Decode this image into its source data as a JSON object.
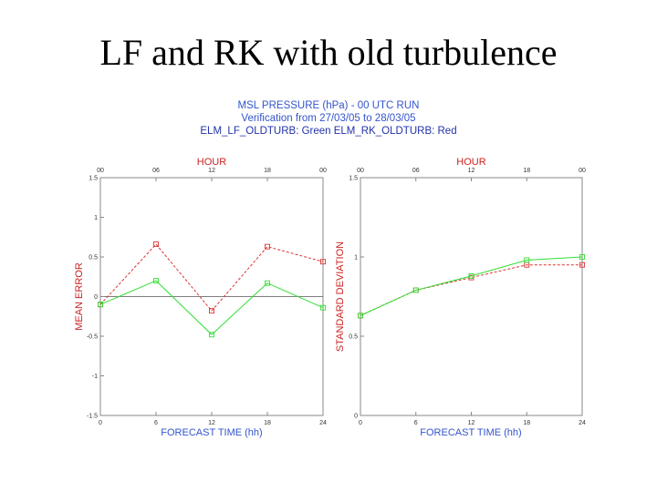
{
  "slide": {
    "title": "LF and RK with old turbulence"
  },
  "header": {
    "line1": "MSL PRESSURE (hPa) - 00 UTC RUN",
    "line2": "Verification from 27/03/05 to 28/03/05",
    "line3": "ELM_LF_OLDTURB: Green   ELM_RK_OLDTURB: Red"
  },
  "colors": {
    "lf": "#33dd33",
    "rk": "#dd3333",
    "frame": "#888888",
    "axis_title_red": "#cc2222",
    "axis_title_blue": "#3355cc"
  },
  "chart_data": [
    {
      "type": "line",
      "top_axis_label": "HOUR",
      "top_ticks": [
        "00",
        "06",
        "12",
        "18",
        "00"
      ],
      "xlabel": "FORECAST TIME (hh)",
      "ylabel": "MEAN ERROR",
      "x": [
        0,
        6,
        12,
        18,
        24
      ],
      "x_ticks": [
        "0",
        "6",
        "12",
        "18",
        "24"
      ],
      "xlim": [
        0,
        24
      ],
      "ylim": [
        -1.5,
        1.5
      ],
      "y_ticks": [
        "1.5",
        "1",
        "0.5",
        "0",
        "-0.5",
        "-1",
        "-1.5"
      ],
      "zero_line": true,
      "series": [
        {
          "name": "ELM_RK_OLDTURB",
          "color": "#dd3333",
          "marker": "square",
          "dash": true,
          "values": [
            -0.1,
            0.66,
            -0.18,
            0.63,
            0.44
          ]
        },
        {
          "name": "ELM_LF_OLDTURB",
          "color": "#33dd33",
          "marker": "square",
          "dash": false,
          "values": [
            -0.1,
            0.2,
            -0.48,
            0.17,
            -0.14
          ]
        }
      ]
    },
    {
      "type": "line",
      "top_axis_label": "HOUR",
      "top_ticks": [
        "00",
        "06",
        "12",
        "18",
        "00"
      ],
      "xlabel": "FORECAST TIME (hh)",
      "ylabel": "STANDARD DEVIATION",
      "x": [
        0,
        6,
        12,
        18,
        24
      ],
      "x_ticks": [
        "0",
        "6",
        "12",
        "18",
        "24"
      ],
      "xlim": [
        0,
        24
      ],
      "ylim": [
        0,
        1.5
      ],
      "y_ticks": [
        "1.5",
        "1",
        "0.5",
        "0"
      ],
      "zero_line": false,
      "series": [
        {
          "name": "ELM_RK_OLDTURB",
          "color": "#dd3333",
          "marker": "square",
          "dash": true,
          "values": [
            0.63,
            0.79,
            0.87,
            0.95,
            0.95
          ]
        },
        {
          "name": "ELM_LF_OLDTURB",
          "color": "#33dd33",
          "marker": "square",
          "dash": false,
          "values": [
            0.63,
            0.79,
            0.88,
            0.98,
            1.0
          ]
        }
      ]
    }
  ]
}
